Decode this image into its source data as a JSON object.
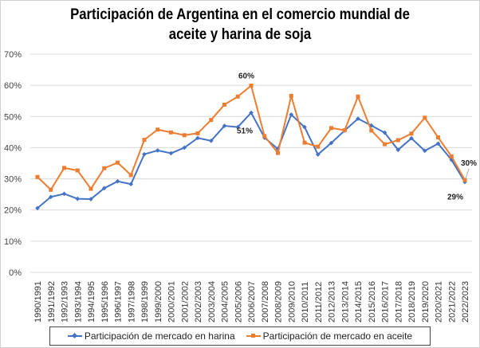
{
  "chart_data": {
    "type": "line",
    "title": "Participación de Argentina en el comercio mundial de aceite y harina de soja",
    "title_lines": [
      "Participación de Argentina en el comercio mundial de",
      "aceite y harina de soja"
    ],
    "xlabel": "",
    "ylabel": "",
    "ylim": [
      0,
      70
    ],
    "yticks": [
      "0%",
      "10%",
      "20%",
      "30%",
      "40%",
      "50%",
      "60%",
      "70%"
    ],
    "grid": true,
    "legend_position": "bottom",
    "categories": [
      "1990/1991",
      "1991/1992",
      "1992/1993",
      "1993/1994",
      "1994/1995",
      "1995/1996",
      "1996/1997",
      "1997/1998",
      "1998/1999",
      "1999/2000",
      "2000/2001",
      "2001/2002",
      "2002/2003",
      "2003/2004",
      "2004/2005",
      "2005/2006",
      "2006/2007",
      "2007/2008",
      "2008/2009",
      "2009/2010",
      "2010/2011",
      "2011/2012",
      "2012/2013",
      "2013/2014",
      "2014/2015",
      "2015/2016",
      "2016/2017",
      "2017/2018",
      "2018/2019",
      "2019/2020",
      "2020/2021",
      "2021/2022",
      "2022/2023"
    ],
    "series": [
      {
        "name": "Participación de mercado en harina",
        "color": "#4472C4",
        "marker": "diamond",
        "values": [
          20.6,
          24.2,
          25.2,
          23.6,
          23.5,
          27.0,
          29.2,
          28.3,
          37.9,
          39.1,
          38.2,
          40.0,
          43.1,
          42.2,
          47.0,
          46.6,
          51.2,
          43.2,
          39.6,
          50.6,
          46.6,
          37.8,
          41.5,
          45.5,
          49.3,
          47.1,
          44.8,
          39.3,
          43.0,
          39.0,
          41.3,
          36.1,
          29.0
        ]
      },
      {
        "name": "Participación de mercado en aceite",
        "color": "#ED7D31",
        "marker": "square",
        "values": [
          30.6,
          26.5,
          33.5,
          32.7,
          26.8,
          33.4,
          35.2,
          31.2,
          42.5,
          45.8,
          44.9,
          44.0,
          44.6,
          48.9,
          53.8,
          56.4,
          59.9,
          43.7,
          38.3,
          56.6,
          41.6,
          40.3,
          46.3,
          45.6,
          56.4,
          45.5,
          41.1,
          42.4,
          44.5,
          49.6,
          43.3,
          37.2,
          29.6
        ]
      }
    ],
    "annotations": [
      {
        "text": "60%",
        "series": 1,
        "category": "2006/2007"
      },
      {
        "text": "51%",
        "series": 0,
        "category": "2006/2007"
      },
      {
        "text": "30%",
        "series": 1,
        "category": "2022/2023"
      },
      {
        "text": "29%",
        "series": 0,
        "category": "2022/2023"
      }
    ]
  }
}
